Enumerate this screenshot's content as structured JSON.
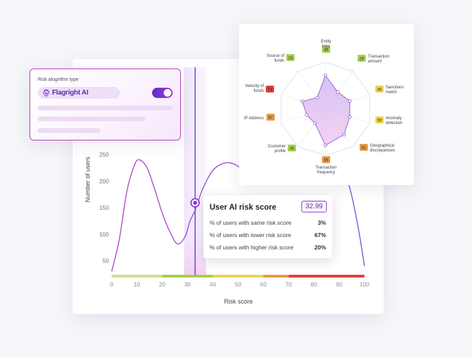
{
  "algorithm_card": {
    "label": "Risk alogrithm type",
    "selected": "Flagright AI",
    "toggle_on": true
  },
  "tooltip": {
    "title": "User AI risk score",
    "score": "32.99",
    "rows": [
      {
        "label": "% of users with same risk score",
        "value": "3%"
      },
      {
        "label": "% of users with lower risk score",
        "value": "67%"
      },
      {
        "label": "% of users with higher risk score",
        "value": "20%"
      }
    ]
  },
  "chart_data": [
    {
      "type": "line",
      "title": "",
      "xlabel": "Risk score",
      "ylabel": "Number of users",
      "xlim": [
        0,
        100
      ],
      "xticks": [
        "0",
        "10",
        "20",
        "30",
        "40",
        "50",
        "60",
        "70",
        "80",
        "90",
        "100"
      ],
      "yticks": [
        "50",
        "100",
        "150",
        "200",
        "250"
      ],
      "grid": false,
      "highlight_x": 33,
      "risk_bands": [
        {
          "from": 0,
          "to": 20,
          "color": "#cfe08a"
        },
        {
          "from": 20,
          "to": 40,
          "color": "#a7cf4c"
        },
        {
          "from": 40,
          "to": 60,
          "color": "#eed24f"
        },
        {
          "from": 60,
          "to": 70,
          "color": "#e79a45"
        },
        {
          "from": 70,
          "to": 100,
          "color": "#dc3f3c"
        }
      ],
      "series": [
        {
          "x": [
            0,
            3,
            6,
            9,
            11,
            14,
            17,
            20,
            23,
            26,
            29,
            31,
            33,
            36,
            40,
            44,
            47,
            50,
            54,
            58,
            62,
            66,
            70,
            74,
            78,
            82,
            86,
            90,
            94,
            96,
            98,
            100
          ],
          "y": [
            30,
            90,
            180,
            230,
            240,
            225,
            185,
            140,
            105,
            82,
            95,
            125,
            145,
            185,
            220,
            233,
            234,
            228,
            210,
            205,
            210,
            218,
            220,
            218,
            225,
            240,
            255,
            245,
            190,
            150,
            100,
            40
          ]
        }
      ]
    },
    {
      "type": "radar",
      "axes": [
        {
          "label": "Entity links",
          "value": "39",
          "color": "#a7cf4c"
        },
        {
          "label": "Transaction amount",
          "value": "29",
          "color": "#a7cf4c"
        },
        {
          "label": "Sanctions match",
          "value": "46",
          "color": "#eed24f"
        },
        {
          "label": "Anomaly detection",
          "value": "59",
          "color": "#eed24f"
        },
        {
          "label": "Geographical discrepancies",
          "value": "62",
          "color": "#e79a45"
        },
        {
          "label": "Transaction frequency",
          "value": "65",
          "color": "#e79a45"
        },
        {
          "label": "Customer profile",
          "value": "35",
          "color": "#a7cf4c"
        },
        {
          "label": "IP Address",
          "value": "67",
          "color": "#e79a45"
        },
        {
          "label": "Velocity of funds",
          "value": "73",
          "color": "#dc3f3c"
        },
        {
          "label": "Source of funds",
          "value": "24",
          "color": "#a7cf4c"
        }
      ],
      "shape_values": [
        0.72,
        0.45,
        0.55,
        0.55,
        0.68,
        0.78,
        0.38,
        0.42,
        0.52,
        0.3
      ]
    }
  ]
}
